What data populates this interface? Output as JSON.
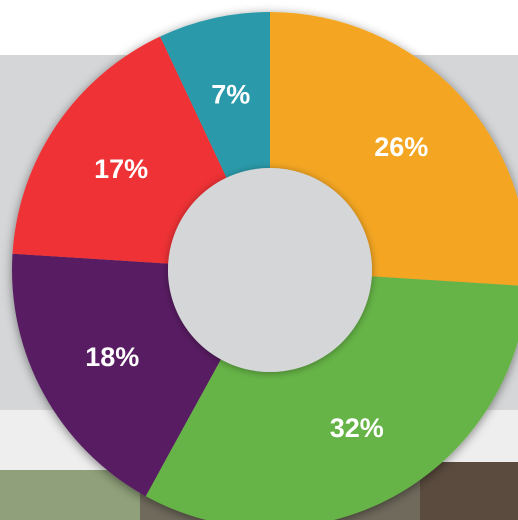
{
  "chart_data": {
    "type": "donut",
    "values": [
      26,
      32,
      18,
      17,
      7
    ],
    "value_labels": [
      "26%",
      "32%",
      "18%",
      "17%",
      "7%"
    ],
    "colors": [
      "#f4a621",
      "#66b446",
      "#581f62",
      "#ee3135",
      "#2a9aaa"
    ]
  }
}
